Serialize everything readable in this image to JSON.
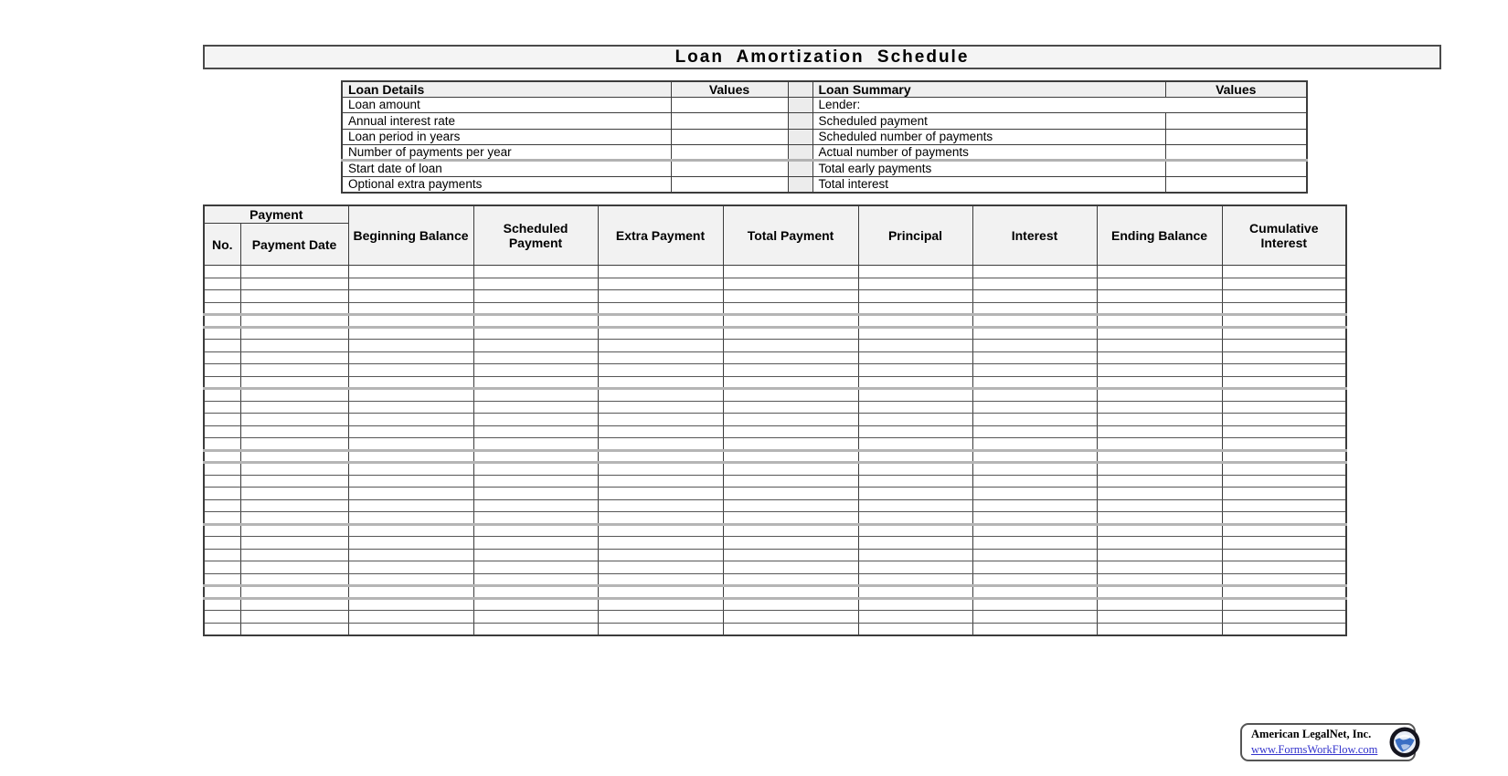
{
  "page": {
    "title": "Loan Amortization Schedule"
  },
  "loan_details": {
    "header": "Loan Details",
    "values_header": "Values",
    "rows": [
      "Loan amount",
      "Annual interest rate",
      "Loan period in years",
      "Number of payments per year",
      "Start date of loan",
      "Optional extra payments"
    ]
  },
  "loan_summary": {
    "header": "Loan Summary",
    "values_header": "Values",
    "rows": [
      "Lender:",
      "Scheduled payment",
      "Scheduled number of payments",
      "Actual number of payments",
      "Total early payments",
      "Total interest"
    ]
  },
  "schedule_table": {
    "payment_group_header": "Payment",
    "sub_headers": [
      "No.",
      "Payment Date"
    ],
    "column_headers": [
      "Beginning Balance",
      "Scheduled Payment",
      "Extra Payment",
      "Total Payment",
      "Principal",
      "Interest",
      "Ending Balance",
      "Cumulative Interest"
    ],
    "body_row_count": 30
  },
  "footer": {
    "company": "American LegalNet, Inc.",
    "link": "www.FormsWorkFlow.com",
    "globe_icon": "globe-icon",
    "link_color": "#3333cc"
  }
}
